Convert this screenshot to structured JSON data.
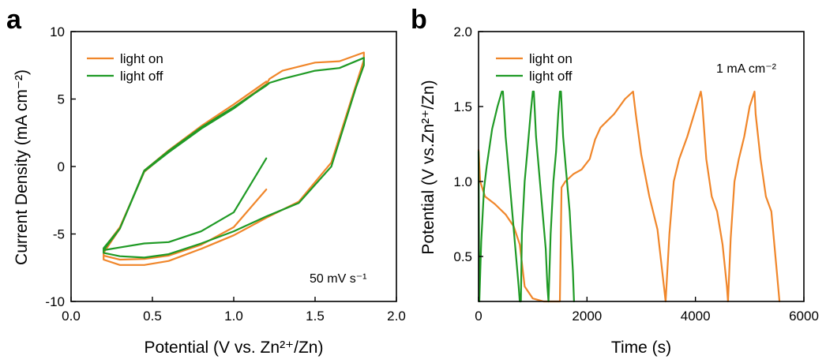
{
  "colors": {
    "light_on": "#f0862a",
    "light_off": "#1f9a25"
  },
  "chart_data": [
    {
      "panel": "a",
      "type": "line",
      "title": "",
      "xlabel": "Potential (V vs. Zn²⁺/Zn)",
      "ylabel": "Current Density (mA cm⁻²)",
      "xlim": [
        0.0,
        2.0
      ],
      "ylim": [
        -10,
        10
      ],
      "xticks": [
        0.0,
        0.5,
        1.0,
        1.5,
        2.0
      ],
      "xtick_labels": [
        "0.0",
        "0.5",
        "1.0",
        "1.5",
        "2.0"
      ],
      "yticks": [
        -10,
        -5,
        0,
        5,
        10
      ],
      "ytick_labels": [
        "-10",
        "-5",
        "0",
        "5",
        "10"
      ],
      "annotation": "50 mV s⁻¹",
      "legend": [
        "light on",
        "light off"
      ],
      "legend_position": "top-left",
      "series": [
        {
          "name": "light on",
          "color_key": "light_on",
          "x": [
            1.2,
            1.0,
            0.8,
            0.6,
            0.45,
            0.3,
            0.2,
            0.2,
            0.3,
            0.45,
            0.6,
            0.8,
            1.0,
            1.2,
            1.22,
            1.3,
            1.5,
            1.65,
            1.8,
            1.8,
            1.75,
            1.6,
            1.4,
            1.2,
            1.0,
            0.8,
            0.6,
            0.45,
            0.3,
            0.2,
            0.2,
            0.3,
            0.45,
            0.6,
            0.8,
            1.0,
            1.2
          ],
          "y": [
            -1.7,
            -4.5,
            -5.8,
            -6.6,
            -6.85,
            -6.9,
            -6.6,
            -6.1,
            -4.5,
            -0.4,
            1.1,
            2.9,
            4.4,
            6.1,
            6.5,
            7.1,
            7.7,
            7.8,
            8.45,
            7.9,
            6.0,
            0.3,
            -2.6,
            -3.8,
            -5.1,
            -6.1,
            -7.0,
            -7.3,
            -7.3,
            -6.9,
            -6.4,
            -4.6,
            -0.3,
            1.2,
            3.0,
            4.6,
            6.3
          ]
        },
        {
          "name": "light off",
          "color_key": "light_off",
          "x": [
            1.2,
            1.0,
            0.8,
            0.6,
            0.45,
            0.3,
            0.2,
            0.2,
            0.3,
            0.45,
            0.6,
            0.8,
            1.0,
            1.2,
            1.22,
            1.3,
            1.5,
            1.65,
            1.8,
            1.8,
            1.75,
            1.6,
            1.4,
            1.2,
            1.0,
            0.8,
            0.6,
            0.45,
            0.3,
            0.2,
            0.2,
            0.3,
            0.45,
            0.6,
            0.8,
            1.0,
            1.2
          ],
          "y": [
            0.6,
            -3.4,
            -4.8,
            -5.6,
            -5.7,
            -6.0,
            -6.2,
            -6.05,
            -4.6,
            -0.3,
            1.15,
            2.9,
            4.4,
            6.0,
            6.2,
            6.5,
            7.1,
            7.3,
            8.05,
            7.5,
            5.8,
            0.0,
            -2.7,
            -3.7,
            -4.8,
            -5.7,
            -6.5,
            -6.75,
            -6.65,
            -6.4,
            -6.2,
            -4.6,
            -0.35,
            1.05,
            2.8,
            4.3,
            6.05
          ]
        }
      ]
    },
    {
      "panel": "b",
      "type": "line",
      "title": "",
      "xlabel": "Time (s)",
      "ylabel": "Potential (V vs.Zn²⁺/Zn)",
      "xlim": [
        0,
        6000
      ],
      "ylim": [
        0.2,
        2.0
      ],
      "xticks": [
        0,
        2000,
        4000,
        6000
      ],
      "xtick_labels": [
        "0",
        "2000",
        "4000",
        "6000"
      ],
      "yticks": [
        0.5,
        1.0,
        1.5,
        2.0
      ],
      "ytick_labels": [
        "0.5",
        "1.0",
        "1.5",
        "2.0"
      ],
      "annotation": "1 mA cm⁻²",
      "legend": [
        "light on",
        "light off"
      ],
      "legend_position": "top-left",
      "series": [
        {
          "name": "light on",
          "color_key": "light_on",
          "x": [
            0,
            30,
            120,
            300,
            500,
            650,
            760,
            850,
            1000,
            1200,
            1400,
            1490,
            1500,
            1530,
            1600,
            1750,
            1900,
            2050,
            2150,
            2250,
            2500,
            2700,
            2850,
            2900,
            3000,
            3150,
            3300,
            3420,
            3450,
            3520,
            3600,
            3700,
            3850,
            4000,
            4100,
            4120,
            4200,
            4300,
            4400,
            4500,
            4580,
            4600,
            4650,
            4720,
            4800,
            4900,
            5000,
            5090,
            5110,
            5200,
            5300,
            5400,
            5500,
            5550
          ],
          "y": [
            1.21,
            1.0,
            0.9,
            0.85,
            0.78,
            0.7,
            0.58,
            0.3,
            0.22,
            0.2,
            0.2,
            0.2,
            0.2,
            0.96,
            1.0,
            1.05,
            1.08,
            1.15,
            1.28,
            1.36,
            1.45,
            1.55,
            1.6,
            1.45,
            1.18,
            0.9,
            0.68,
            0.3,
            0.2,
            0.65,
            1.0,
            1.15,
            1.3,
            1.48,
            1.6,
            1.55,
            1.15,
            0.9,
            0.8,
            0.58,
            0.3,
            0.2,
            0.62,
            1.0,
            1.15,
            1.3,
            1.5,
            1.6,
            1.45,
            1.15,
            0.9,
            0.8,
            0.4,
            0.2
          ]
        },
        {
          "name": "light off",
          "color_key": "light_off",
          "x": [
            0,
            15,
            50,
            100,
            150,
            250,
            350,
            430,
            450,
            500,
            560,
            620,
            680,
            740,
            760,
            780,
            800,
            850,
            900,
            960,
            1000,
            1020,
            1060,
            1120,
            1180,
            1240,
            1270,
            1290,
            1330,
            1380,
            1430,
            1470,
            1500,
            1520,
            1560,
            1620,
            1680,
            1740,
            1760
          ],
          "y": [
            1.2,
            0.2,
            0.6,
            0.95,
            1.1,
            1.35,
            1.5,
            1.6,
            1.6,
            1.3,
            1.05,
            0.8,
            0.55,
            0.3,
            0.2,
            0.2,
            0.65,
            1.0,
            1.2,
            1.45,
            1.6,
            1.6,
            1.3,
            1.05,
            0.8,
            0.55,
            0.3,
            0.2,
            0.65,
            1.0,
            1.2,
            1.45,
            1.6,
            1.6,
            1.3,
            1.05,
            0.8,
            0.4,
            0.2
          ]
        }
      ]
    }
  ]
}
